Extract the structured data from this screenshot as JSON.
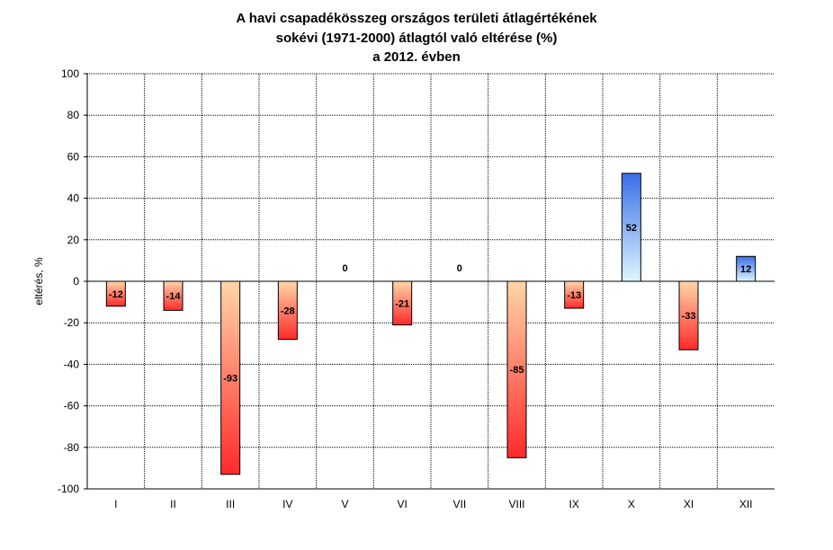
{
  "chart_data": {
    "type": "bar",
    "title_lines": [
      "A havi csapadékösszeg országos területi átlagértékének",
      "sokévi (1971-2000) átlagtól való eltérése (%)",
      "a 2012. évben"
    ],
    "xlabel": "",
    "ylabel": "eltérés, %",
    "ylim": [
      -100,
      100
    ],
    "yticks": [
      100,
      80,
      60,
      40,
      20,
      0,
      -20,
      -40,
      -60,
      -80,
      -100
    ],
    "categories": [
      "I",
      "II",
      "III",
      "IV",
      "V",
      "VI",
      "VII",
      "VIII",
      "IX",
      "X",
      "XI",
      "XII"
    ],
    "values": [
      -12,
      -14,
      -93,
      -28,
      0,
      -21,
      0,
      -85,
      -13,
      52,
      -33,
      12
    ],
    "grid": true,
    "colors": {
      "negative_top": "#ffd6a8",
      "negative_bottom": "#ff2a2a",
      "positive_top": "#3a6ee8",
      "positive_bottom": "#ddf6ff",
      "bar_stroke": "#000000",
      "grid": "#000000",
      "axis": "#000000"
    }
  }
}
